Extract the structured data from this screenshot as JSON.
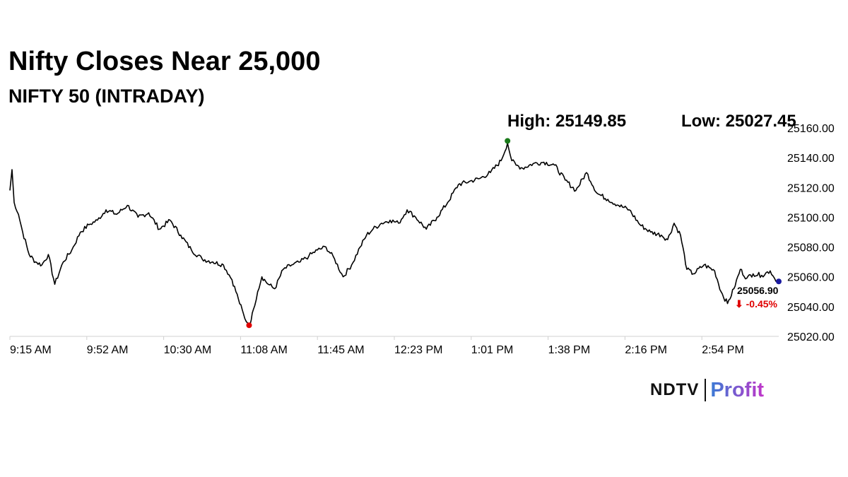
{
  "header": {
    "title": "Nifty Closes Near 25,000",
    "subtitle": "NIFTY 50 (INTRADAY)"
  },
  "stats": {
    "high_label": "High: 25149.85",
    "low_label": "Low: 25027.45"
  },
  "last_point": {
    "value_label": "25056.90",
    "change_label": "⬇ -0.45%",
    "change_color": "#e00000"
  },
  "colors": {
    "line": "#000000",
    "high_marker": "#1a7a1a",
    "low_marker": "#e00000",
    "last_marker": "#1a1aa0",
    "axis": "#d0d0d0"
  },
  "logo": {
    "brand": "NDTV",
    "product": "Profit",
    "dot_color": "#e00000",
    "product_gradient": [
      "#3a7bd5",
      "#c035c9"
    ]
  },
  "chart_data": {
    "type": "line",
    "title": "Nifty Closes Near 25,000",
    "subtitle": "NIFTY 50 (INTRADAY)",
    "x_ticks": [
      "9:15 AM",
      "9:52 AM",
      "10:30 AM",
      "11:08 AM",
      "11:45 AM",
      "12:23 PM",
      "1:01 PM",
      "1:38 PM",
      "2:16 PM",
      "2:54 PM"
    ],
    "y_ticks": [
      "25020.00",
      "25040.00",
      "25060.00",
      "25080.00",
      "25100.00",
      "25120.00",
      "25140.00",
      "25160.00"
    ],
    "ylim": [
      25020,
      25160
    ],
    "x_range_minutes": [
      0,
      360
    ],
    "grid": false,
    "high": 25149.85,
    "low": 25027.45,
    "last": 25056.9,
    "series": [
      {
        "x": [
          0,
          1,
          2,
          4,
          6,
          9,
          12,
          15,
          18,
          21,
          25,
          29,
          33,
          37,
          41,
          45,
          50,
          55,
          60,
          65,
          70,
          75,
          80,
          85,
          90,
          95,
          100,
          104,
          107,
          110,
          112,
          113,
          114,
          116,
          118,
          121,
          124,
          128,
          132,
          136,
          140,
          144,
          148,
          152,
          156,
          160,
          164,
          167,
          170,
          174,
          178,
          182,
          186,
          190,
          195,
          200,
          205,
          210,
          215,
          220,
          225,
          230,
          233,
          235,
          237,
          240,
          245,
          250,
          255,
          260,
          265,
          270,
          275,
          280,
          285,
          290,
          295,
          300,
          305,
          308,
          311,
          314,
          317,
          320,
          325,
          330,
          333,
          336,
          339,
          342,
          345,
          348,
          352,
          356,
          358,
          360
        ],
        "values": [
          25118,
          25132,
          25110,
          25102,
          25090,
          25075,
          25070,
          25068,
          25075,
          25055,
          25070,
          25078,
          25090,
          25095,
          25098,
          25105,
          25102,
          25108,
          25100,
          25103,
          25092,
          25098,
          25088,
          25078,
          25072,
          25070,
          25068,
          25058,
          25045,
          25032,
          25028,
          25031,
          25038,
          25050,
          25060,
          25055,
          25052,
          25065,
          25068,
          25070,
          25074,
          25078,
          25080,
          25072,
          25060,
          25068,
          25080,
          25088,
          25092,
          25096,
          25098,
          25096,
          25105,
          25100,
          25092,
          25100,
          25110,
          25122,
          25124,
          25126,
          25130,
          25138,
          25149.85,
          25138,
          25135,
          25133,
          25136,
          25137,
          25135,
          25125,
          25118,
          25130,
          25116,
          25112,
          25108,
          25105,
          25095,
          25090,
          25088,
          25085,
          25096,
          25088,
          25065,
          25062,
          25068,
          25064,
          25050,
          25042,
          25052,
          25065,
          25059,
          25062,
          25061,
          25064,
          25059,
          25056.9
        ]
      }
    ]
  }
}
